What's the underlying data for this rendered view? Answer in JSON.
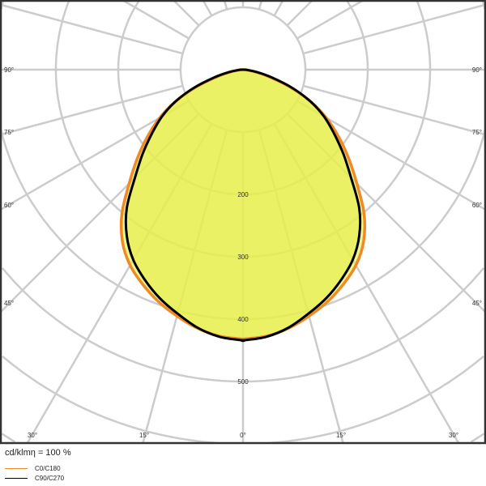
{
  "chart_data": {
    "type": "polar",
    "unit_label": "cd/klmη = 100 %",
    "radial_ticks": [
      100,
      200,
      300,
      400,
      500,
      600,
      700
    ],
    "radial_tick_labels": [
      "200",
      "300",
      "400",
      "500"
    ],
    "angle_labels_left": [
      "90°",
      "75°",
      "60°",
      "45°"
    ],
    "angle_labels_bottom": [
      "30°",
      "15°",
      "0°",
      "15°",
      "30°"
    ],
    "angles_deg": [
      0,
      5,
      10,
      15,
      20,
      25,
      30,
      35,
      40,
      45,
      50,
      55,
      60,
      65,
      70,
      75,
      80,
      85,
      90
    ],
    "series": [
      {
        "name": "C0/C180",
        "color": "#f08a24",
        "values": [
          432,
          429,
          421,
          409,
          396,
          380,
          362,
          337,
          302,
          258,
          221,
          187,
          154,
          118,
          78,
          42,
          20,
          7,
          0
        ]
      },
      {
        "name": "C90/C270",
        "color": "#000000",
        "values": [
          434,
          430,
          420,
          405,
          390,
          372,
          352,
          325,
          290,
          245,
          210,
          178,
          150,
          118,
          82,
          47,
          23,
          8,
          0
        ]
      }
    ],
    "fill_color": "#e6ef4a",
    "grid": true,
    "grid_angle_step_deg": 15
  }
}
